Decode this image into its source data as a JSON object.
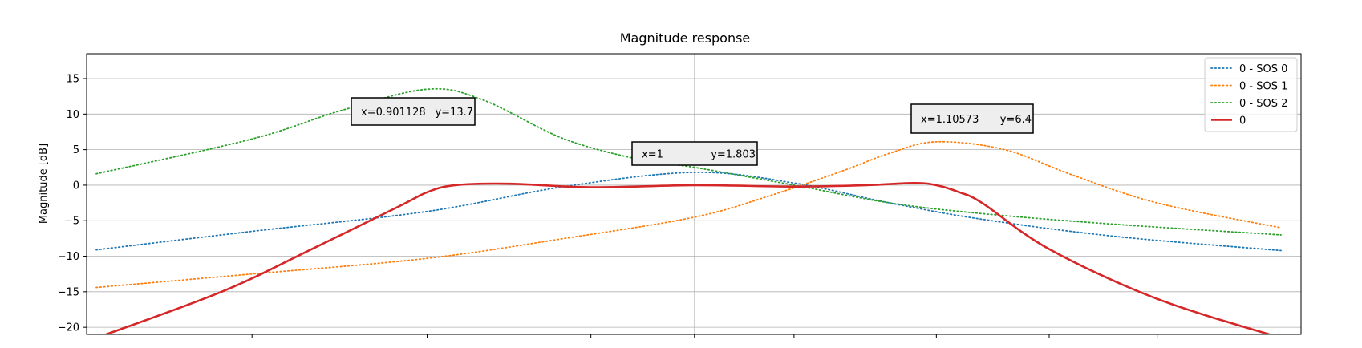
{
  "chart_data": {
    "type": "line",
    "title": "Magnitude response",
    "xlabel": "",
    "ylabel": "Magnitude [dB]",
    "xscale": "log",
    "xlim": [
      0.787,
      1.27
    ],
    "ylim": [
      -21,
      18.5
    ],
    "yticks": [
      15,
      10,
      5,
      0,
      -5,
      -10,
      -15,
      -20
    ],
    "ytick_labels": [
      "15",
      "10",
      "5",
      "0",
      "−5",
      "−10",
      "−15",
      "−20"
    ],
    "xticks_unlabeled": [
      0.84,
      0.9,
      0.96,
      1.0,
      1.04,
      1.1,
      1.15,
      1.2
    ],
    "grid": true,
    "legend_position": "top-right",
    "series": [
      {
        "name": "0 - SOS 0",
        "color": "#1f77b4",
        "style": "dotted",
        "x": [
          0.79,
          0.84,
          0.9,
          0.95,
          1.0,
          1.04,
          1.08,
          1.12,
          1.18,
          1.26
        ],
        "y": [
          -9.1,
          -6.5,
          -3.7,
          -0.2,
          1.8,
          0.3,
          -2.5,
          -4.8,
          -7.2,
          -9.2
        ]
      },
      {
        "name": "0 - SOS 1",
        "color": "#ff7f0e",
        "style": "dotted",
        "x": [
          0.79,
          0.84,
          0.9,
          0.95,
          1.0,
          1.03,
          1.06,
          1.08,
          1.1,
          1.13,
          1.16,
          1.2,
          1.26
        ],
        "y": [
          -14.4,
          -12.5,
          -10.3,
          -7.5,
          -4.5,
          -1.5,
          2.0,
          4.5,
          6.1,
          5.0,
          1.5,
          -2.5,
          -6.0
        ]
      },
      {
        "name": "0 - SOS 2",
        "color": "#2ca02c",
        "style": "dotted",
        "x": [
          0.79,
          0.84,
          0.87,
          0.9,
          0.92,
          0.95,
          0.98,
          1.0,
          1.04,
          1.08,
          1.12,
          1.18,
          1.26
        ],
        "y": [
          1.6,
          6.5,
          10.5,
          13.5,
          12.0,
          6.5,
          3.5,
          2.5,
          0.0,
          -2.5,
          -4.0,
          -5.5,
          -7.0
        ]
      },
      {
        "name": "0",
        "color": "#d62728",
        "style": "solid",
        "x": [
          0.79,
          0.83,
          0.86,
          0.89,
          0.9,
          0.91,
          0.93,
          0.96,
          1.0,
          1.04,
          1.07,
          1.09,
          1.1,
          1.11,
          1.12,
          1.15,
          1.2,
          1.26
        ],
        "y": [
          -21.5,
          -15.0,
          -9.0,
          -3.0,
          -1.0,
          0.0,
          0.2,
          -0.3,
          0.0,
          -0.2,
          0.0,
          0.3,
          0.0,
          -1.0,
          -2.5,
          -9.0,
          -16.0,
          -21.5
        ]
      }
    ],
    "annotations": [
      {
        "x": 0.901128,
        "y": 13.7,
        "text_x": "x=0.901128",
        "text_y": "y=13.7"
      },
      {
        "x": 1,
        "y": 1.803,
        "text_x": "x=1",
        "text_y": "y=1.803"
      },
      {
        "x": 1.10573,
        "y": 6.4,
        "text_x": "x=1.10573",
        "text_y": "y=6.4"
      }
    ]
  }
}
